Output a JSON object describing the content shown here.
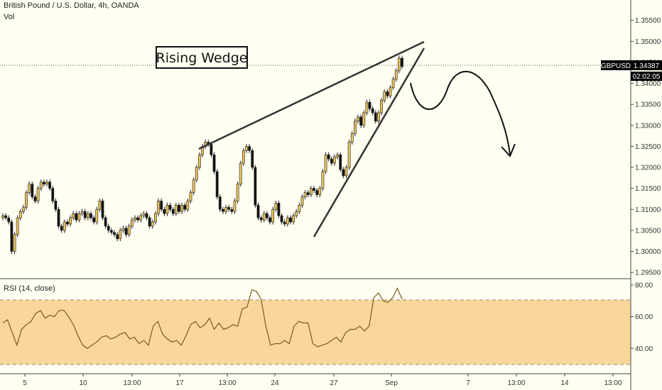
{
  "header": {
    "title": "British Pound / U.S. Dollar, 4h, OANDA",
    "volume_label": "Vol",
    "rsi_label": "RSI (14, close)"
  },
  "price_tag": {
    "symbol": "GBPUSD",
    "price": "1.34387",
    "countdown": "02:02:05"
  },
  "annotation": {
    "pattern": "Rising Wedge"
  },
  "colors": {
    "background": "#fffff2",
    "candle_up": "#e8c25c",
    "candle_down": "#111111",
    "rsi_band": "#f9d79a",
    "rsi_line": "#7a5a1f",
    "trendline": "#333333",
    "tag_bg": "#000000"
  },
  "chart_data": [
    {
      "type": "candlestick",
      "title": "British Pound / U.S. Dollar, 4h, OANDA",
      "x_tick_labels": [
        "5",
        "10",
        "13:00",
        "17",
        "13:00",
        "24",
        "27",
        "Sep",
        "7",
        "13:00",
        "14",
        "13:00"
      ],
      "y_tick_labels": [
        "1.35500",
        "1.35000",
        "1.34500",
        "1.34000",
        "1.33500",
        "1.33000",
        "1.32500",
        "1.32000",
        "1.31500",
        "1.31000",
        "1.30500",
        "1.30000",
        "1.29500"
      ],
      "ylim": [
        1.2935,
        1.3585
      ],
      "last_price": 1.34387,
      "close": [
        1.3085,
        1.308,
        1.307,
        1.3,
        1.304,
        1.308,
        1.3095,
        1.3105,
        1.314,
        1.316,
        1.313,
        1.312,
        1.315,
        1.3165,
        1.316,
        1.3165,
        1.315,
        1.312,
        1.31,
        1.306,
        1.305,
        1.307,
        1.3065,
        1.308,
        1.309,
        1.3075,
        1.309,
        1.3095,
        1.308,
        1.309,
        1.308,
        1.307,
        1.31,
        1.312,
        1.308,
        1.306,
        1.305,
        1.3045,
        1.304,
        1.303,
        1.305,
        1.3055,
        1.304,
        1.306,
        1.3075,
        1.308,
        1.3075,
        1.3085,
        1.309,
        1.308,
        1.306,
        1.307,
        1.309,
        1.312,
        1.31,
        1.309,
        1.311,
        1.31,
        1.309,
        1.311,
        1.3095,
        1.311,
        1.31,
        1.312,
        1.314,
        1.317,
        1.32,
        1.323,
        1.325,
        1.326,
        1.3255,
        1.323,
        1.319,
        1.313,
        1.31,
        1.3095,
        1.3105,
        1.31,
        1.3095,
        1.312,
        1.316,
        1.321,
        1.324,
        1.325,
        1.324,
        1.32,
        1.311,
        1.308,
        1.3075,
        1.309,
        1.308,
        1.307,
        1.31,
        1.3115,
        1.3085,
        1.307,
        1.3065,
        1.308,
        1.307,
        1.3085,
        1.3095,
        1.311,
        1.313,
        1.314,
        1.3135,
        1.315,
        1.3145,
        1.3135,
        1.315,
        1.319,
        1.323,
        1.322,
        1.321,
        1.3225,
        1.323,
        1.3195,
        1.318,
        1.32,
        1.326,
        1.328,
        1.331,
        1.332,
        1.33,
        1.333,
        1.3355,
        1.334,
        1.333,
        1.331,
        1.333,
        1.336,
        1.338,
        1.337,
        1.339,
        1.341,
        1.343,
        1.346,
        1.344
      ]
    },
    {
      "type": "line",
      "title": "RSI (14, close)",
      "y_tick_labels": [
        "80.00",
        "60.00",
        "40.00"
      ],
      "ylim": [
        24,
        84
      ],
      "overbought": 70,
      "oversold": 30,
      "values": [
        56,
        58,
        50,
        42,
        52,
        55,
        57,
        62,
        64,
        59,
        61,
        60,
        64,
        64,
        60,
        55,
        48,
        42,
        40,
        42,
        44,
        47,
        48,
        46,
        47,
        49,
        50,
        46,
        47,
        43,
        45,
        42,
        54,
        57,
        49,
        46,
        44,
        45,
        42,
        48,
        55,
        57,
        53,
        55,
        59,
        52,
        56,
        52,
        53,
        55,
        54,
        65,
        66,
        77,
        76,
        71,
        54,
        42,
        43,
        43,
        45,
        43,
        54,
        57,
        56,
        56,
        43,
        41,
        42,
        43,
        45,
        47,
        44,
        50,
        52,
        52,
        54,
        51,
        54,
        72,
        75,
        70,
        69,
        72,
        78,
        71
      ]
    }
  ]
}
